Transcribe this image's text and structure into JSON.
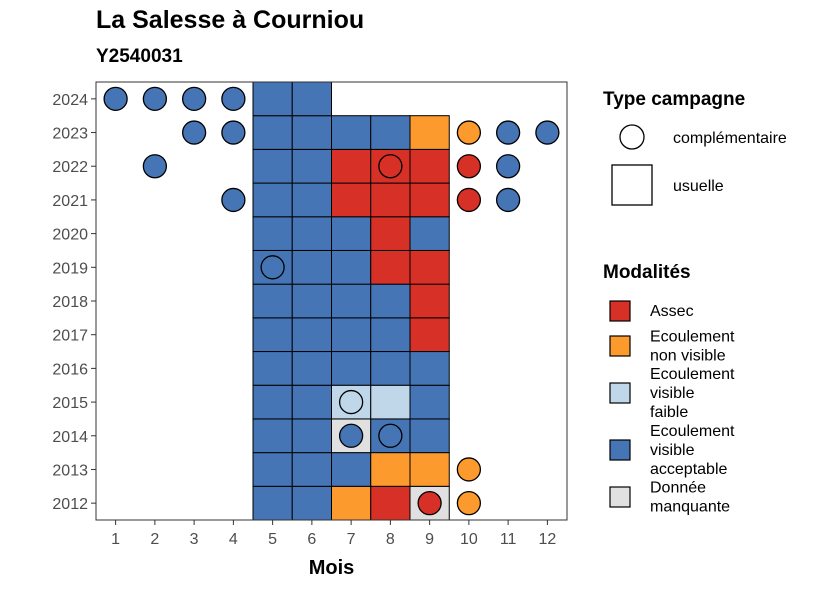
{
  "chart_data": {
    "type": "heatmap",
    "title": "La Salesse à Courniou",
    "subtitle": "Y2540031",
    "xlabel": "Mois",
    "x_ticks": [
      "1",
      "2",
      "3",
      "4",
      "5",
      "6",
      "7",
      "8",
      "9",
      "10",
      "11",
      "12"
    ],
    "years": [
      "2012",
      "2013",
      "2014",
      "2015",
      "2016",
      "2017",
      "2018",
      "2019",
      "2020",
      "2021",
      "2022",
      "2023",
      "2024"
    ],
    "xlim": [
      0.5,
      12.5
    ],
    "ylim": [
      2011.5,
      2024.5
    ],
    "legend_shape": {
      "title": "Type campagne",
      "entries": [
        {
          "key": "complementaire",
          "label": "complémentaire",
          "shape": "circle"
        },
        {
          "key": "usuelle",
          "label": "usuelle",
          "shape": "square"
        }
      ]
    },
    "legend_modalites": {
      "title": "Modalités",
      "entries": [
        {
          "key": "assec",
          "label": [
            "Assec"
          ],
          "color": "#d73027"
        },
        {
          "key": "nonvisible",
          "label": [
            "Ecoulement",
            "non visible"
          ],
          "color": "#fd9a2d"
        },
        {
          "key": "faible",
          "label": [
            "Ecoulement",
            "visible",
            "faible"
          ],
          "color": "#bfd7e8"
        },
        {
          "key": "acceptable",
          "label": [
            "Ecoulement",
            "visible",
            "acceptable"
          ],
          "color": "#4575b4"
        },
        {
          "key": "manquante",
          "label": [
            "Donnée",
            "manquante"
          ],
          "color": "#e0e0e0"
        }
      ]
    },
    "usuelle": [
      {
        "year": 2012,
        "months": {
          "5": "acceptable",
          "6": "acceptable",
          "7": "nonvisible",
          "8": "assec",
          "9": "manquante"
        }
      },
      {
        "year": 2013,
        "months": {
          "5": "acceptable",
          "6": "acceptable",
          "7": "acceptable",
          "8": "nonvisible",
          "9": "nonvisible"
        }
      },
      {
        "year": 2014,
        "months": {
          "5": "acceptable",
          "6": "acceptable",
          "7": "manquante",
          "8": "acceptable",
          "9": "acceptable"
        }
      },
      {
        "year": 2015,
        "months": {
          "5": "acceptable",
          "6": "acceptable",
          "7": "faible",
          "8": "faible",
          "9": "acceptable"
        }
      },
      {
        "year": 2016,
        "months": {
          "5": "acceptable",
          "6": "acceptable",
          "7": "acceptable",
          "8": "acceptable",
          "9": "acceptable"
        }
      },
      {
        "year": 2017,
        "months": {
          "5": "acceptable",
          "6": "acceptable",
          "7": "acceptable",
          "8": "acceptable",
          "9": "assec"
        }
      },
      {
        "year": 2018,
        "months": {
          "5": "acceptable",
          "6": "acceptable",
          "7": "acceptable",
          "8": "acceptable",
          "9": "assec"
        }
      },
      {
        "year": 2019,
        "months": {
          "5": "acceptable",
          "6": "acceptable",
          "7": "acceptable",
          "8": "assec",
          "9": "assec"
        }
      },
      {
        "year": 2020,
        "months": {
          "5": "acceptable",
          "6": "acceptable",
          "7": "acceptable",
          "8": "assec",
          "9": "acceptable"
        }
      },
      {
        "year": 2021,
        "months": {
          "5": "acceptable",
          "6": "acceptable",
          "7": "assec",
          "8": "assec",
          "9": "assec"
        }
      },
      {
        "year": 2022,
        "months": {
          "5": "acceptable",
          "6": "acceptable",
          "7": "assec",
          "8": "assec",
          "9": "assec"
        }
      },
      {
        "year": 2023,
        "months": {
          "5": "acceptable",
          "6": "acceptable",
          "7": "acceptable",
          "8": "acceptable",
          "9": "nonvisible"
        }
      },
      {
        "year": 2024,
        "months": {
          "5": "acceptable",
          "6": "acceptable"
        }
      }
    ],
    "complementaire": [
      {
        "year": 2024,
        "month": 1,
        "value": "acceptable"
      },
      {
        "year": 2024,
        "month": 2,
        "value": "acceptable"
      },
      {
        "year": 2024,
        "month": 3,
        "value": "acceptable"
      },
      {
        "year": 2024,
        "month": 4,
        "value": "acceptable"
      },
      {
        "year": 2023,
        "month": 3,
        "value": "acceptable"
      },
      {
        "year": 2023,
        "month": 4,
        "value": "acceptable"
      },
      {
        "year": 2023,
        "month": 10,
        "value": "nonvisible"
      },
      {
        "year": 2023,
        "month": 11,
        "value": "acceptable"
      },
      {
        "year": 2023,
        "month": 12,
        "value": "acceptable"
      },
      {
        "year": 2022,
        "month": 2,
        "value": "acceptable"
      },
      {
        "year": 2022,
        "month": 8,
        "value": "assec"
      },
      {
        "year": 2022,
        "month": 10,
        "value": "assec"
      },
      {
        "year": 2022,
        "month": 11,
        "value": "acceptable"
      },
      {
        "year": 2021,
        "month": 4,
        "value": "acceptable"
      },
      {
        "year": 2021,
        "month": 10,
        "value": "assec"
      },
      {
        "year": 2021,
        "month": 11,
        "value": "acceptable"
      },
      {
        "year": 2019,
        "month": 5,
        "value": "acceptable"
      },
      {
        "year": 2015,
        "month": 7,
        "value": "faible"
      },
      {
        "year": 2014,
        "month": 7,
        "value": "acceptable"
      },
      {
        "year": 2014,
        "month": 8,
        "value": "acceptable"
      },
      {
        "year": 2013,
        "month": 10,
        "value": "nonvisible"
      },
      {
        "year": 2012,
        "month": 9,
        "value": "assec"
      },
      {
        "year": 2012,
        "month": 10,
        "value": "nonvisible"
      }
    ]
  }
}
